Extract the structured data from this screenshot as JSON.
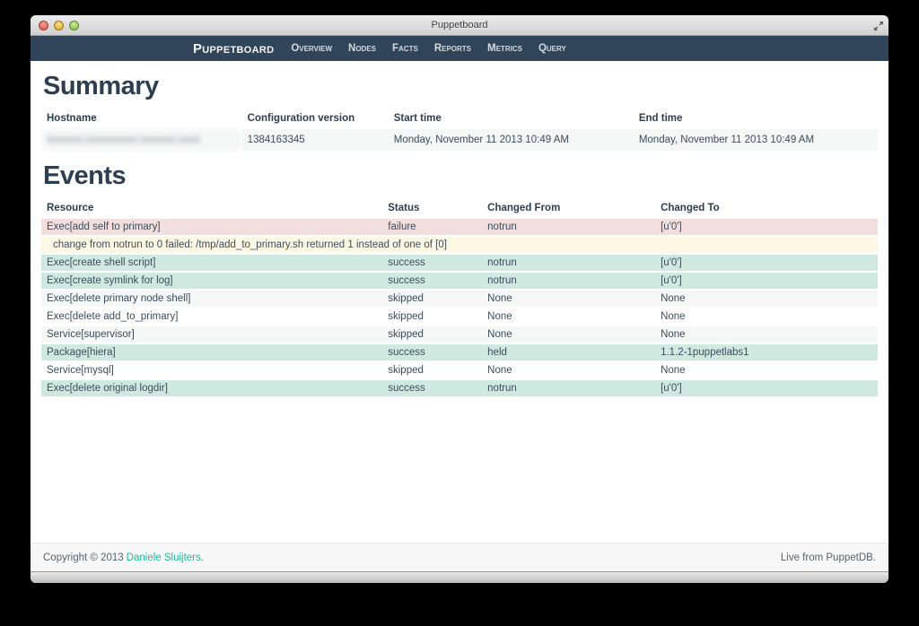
{
  "window": {
    "title": "Puppetboard"
  },
  "navbar": {
    "brand": "Puppetboard",
    "items": [
      "Overview",
      "Nodes",
      "Facts",
      "Reports",
      "Metrics",
      "Query"
    ]
  },
  "summary": {
    "title": "Summary",
    "columns": [
      "Hostname",
      "Configuration version",
      "Start time",
      "End time"
    ],
    "rows": [
      {
        "cells": [
          "xxxxxxx.xxxxxxxxxx.xxxxxxx.xxxx",
          "1384163345",
          "Monday, November 11 2013 10:49 AM",
          "Monday, November 11 2013 10:49 AM"
        ],
        "class": "odd",
        "cell_classes": [
          "redacted",
          "",
          "",
          ""
        ]
      }
    ]
  },
  "events": {
    "title": "Events",
    "columns": [
      "Resource",
      "Status",
      "Changed From",
      "Changed To"
    ],
    "rows": [
      {
        "cells": [
          "Exec[add self to primary]",
          "failure",
          "notrun",
          "[u'0']"
        ],
        "class": "danger"
      },
      {
        "cells": [
          "change from notrun to 0 failed: /tmp/add_to_primary.sh returned 1 instead of one of [0]"
        ],
        "class": "warning message",
        "colspan": 4
      },
      {
        "cells": [
          "Exec[create shell script]",
          "success",
          "notrun",
          "[u'0']"
        ],
        "class": "success"
      },
      {
        "cells": [
          "Exec[create symlink for log]",
          "success",
          "notrun",
          "[u'0']"
        ],
        "class": "success"
      },
      {
        "cells": [
          "Exec[delete primary node shell]",
          "skipped",
          "None",
          "None"
        ],
        "class": "odd"
      },
      {
        "cells": [
          "Exec[delete add_to_primary]",
          "skipped",
          "None",
          "None"
        ],
        "class": ""
      },
      {
        "cells": [
          "Service[supervisor]",
          "skipped",
          "None",
          "None"
        ],
        "class": "odd"
      },
      {
        "cells": [
          "Package[hiera]",
          "success",
          "held",
          "1.1.2-1puppetlabs1"
        ],
        "class": "success"
      },
      {
        "cells": [
          "Service[mysql]",
          "skipped",
          "None",
          "None"
        ],
        "class": ""
      },
      {
        "cells": [
          "Exec[delete original logdir]",
          "success",
          "notrun",
          "[u'0']"
        ],
        "class": "success"
      }
    ]
  },
  "footer": {
    "copyright_prefix": "Copyright © 2013",
    "author_link": "Daniele Sluijters",
    "copyright_suffix": ".",
    "right_text": "Live from PuppetDB."
  },
  "colors": {
    "navbar_bg": "#31455a",
    "heading_text": "#2c3e50",
    "danger_row": "#f2dedd",
    "warning_row": "#fcf8e3",
    "success_row": "#cfe8e0",
    "stripe_row": "#f5f6f6",
    "link": "#18bc9c"
  }
}
